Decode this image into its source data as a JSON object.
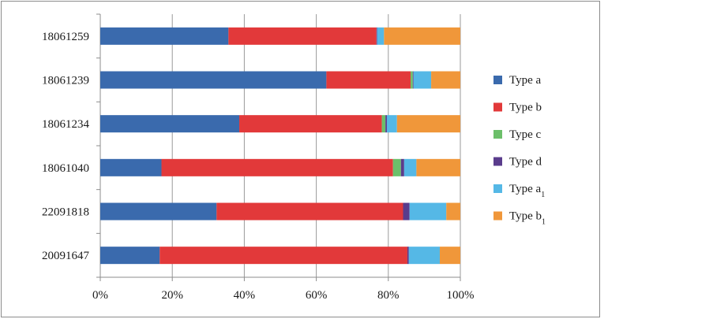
{
  "chart_data": {
    "type": "bar",
    "orientation": "horizontal",
    "stacked": "percent",
    "categories": [
      "20091647",
      "22091818",
      "18061040",
      "18061234",
      "18061239",
      "18061259"
    ],
    "series": [
      {
        "name": "Type a",
        "sub": "",
        "color": "#3a6aad",
        "values": [
          16.5,
          32.3,
          17.0,
          38.6,
          62.8,
          35.6
        ]
      },
      {
        "name": "Type b",
        "sub": "",
        "color": "#e2393a",
        "values": [
          68.8,
          51.8,
          64.3,
          39.6,
          23.4,
          41.1
        ]
      },
      {
        "name": "Type c",
        "sub": "",
        "color": "#6cbf6a",
        "values": [
          0.0,
          0.0,
          2.2,
          1.0,
          0.6,
          0.0
        ]
      },
      {
        "name": "Type d",
        "sub": "",
        "color": "#5a3c8c",
        "values": [
          0.4,
          1.8,
          0.9,
          0.4,
          0.2,
          0.2
        ]
      },
      {
        "name": "Type a",
        "sub": "1",
        "color": "#55b8e6",
        "values": [
          8.6,
          10.2,
          3.4,
          2.8,
          4.9,
          1.9
        ]
      },
      {
        "name": "Type b",
        "sub": "1",
        "color": "#f0973a",
        "values": [
          5.7,
          3.9,
          12.2,
          17.6,
          8.1,
          21.2
        ]
      }
    ],
    "xlim": [
      0,
      100
    ],
    "xticks": [
      "0%",
      "20%",
      "40%",
      "60%",
      "80%",
      "100%"
    ],
    "grid": "vertical",
    "legend_position": "right"
  }
}
